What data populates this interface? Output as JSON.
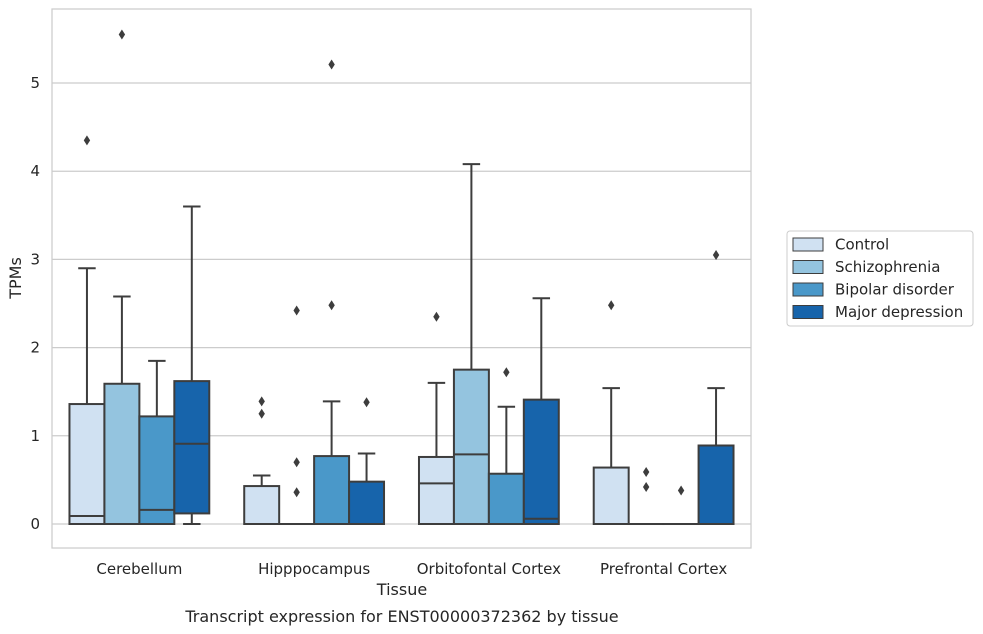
{
  "chart_data": {
    "type": "box",
    "caption": "Transcript expression for ENST00000372362 by tissue",
    "xlabel": "Tissue",
    "ylabel": "TPMs",
    "ylim": [
      -0.27,
      5.85
    ],
    "yticks": [
      0,
      1,
      2,
      3,
      4,
      5
    ],
    "grid": true,
    "legend_position": "right",
    "categories": [
      "Cerebellum",
      "Hipppocampus",
      "Orbitofontal Cortex",
      "Prefrontal Cortex"
    ],
    "series": [
      {
        "name": "Control",
        "color": "#d0e1f2",
        "boxes": [
          {
            "q1": 0,
            "median": 0.09,
            "q3": 1.36,
            "whisker_low": 0,
            "whisker_high": 2.9,
            "outliers": [
              4.35
            ]
          },
          {
            "q1": 0,
            "median": 0,
            "q3": 0.43,
            "whisker_low": 0,
            "whisker_high": 0.55,
            "outliers": [
              1.39,
              1.25
            ]
          },
          {
            "q1": 0,
            "median": 0.46,
            "q3": 0.76,
            "whisker_low": 0,
            "whisker_high": 1.6,
            "outliers": [
              2.35
            ]
          },
          {
            "q1": 0,
            "median": 0,
            "q3": 0.64,
            "whisker_low": 0,
            "whisker_high": 1.54,
            "outliers": [
              2.48
            ]
          }
        ]
      },
      {
        "name": "Schizophrenia",
        "color": "#94c4df",
        "boxes": [
          {
            "q1": 0,
            "median": 0,
            "q3": 1.59,
            "whisker_low": 0,
            "whisker_high": 2.58,
            "outliers": [
              5.55
            ]
          },
          {
            "q1": 0,
            "median": 0,
            "q3": 0,
            "whisker_low": 0,
            "whisker_high": 0,
            "outliers": [
              0.7,
              0.36,
              2.42
            ]
          },
          {
            "q1": 0,
            "median": 0.79,
            "q3": 1.75,
            "whisker_low": 0,
            "whisker_high": 4.08,
            "outliers": []
          },
          {
            "q1": 0,
            "median": 0,
            "q3": 0,
            "whisker_low": 0,
            "whisker_high": 0,
            "outliers": [
              0.59,
              0.42
            ]
          }
        ]
      },
      {
        "name": "Bipolar disorder",
        "color": "#4a98c9",
        "boxes": [
          {
            "q1": 0,
            "median": 0.16,
            "q3": 1.22,
            "whisker_low": 0,
            "whisker_high": 1.85,
            "outliers": []
          },
          {
            "q1": 0,
            "median": 0,
            "q3": 0.77,
            "whisker_low": 0,
            "whisker_high": 1.39,
            "outliers": [
              5.21,
              2.48
            ]
          },
          {
            "q1": 0,
            "median": 0,
            "q3": 0.57,
            "whisker_low": 0,
            "whisker_high": 1.33,
            "outliers": [
              1.72
            ]
          },
          {
            "q1": 0,
            "median": 0,
            "q3": 0,
            "whisker_low": 0,
            "whisker_high": 0,
            "outliers": [
              0.38
            ]
          }
        ]
      },
      {
        "name": "Major depression",
        "color": "#1764ab",
        "boxes": [
          {
            "q1": 0.12,
            "median": 0.91,
            "q3": 1.62,
            "whisker_low": 0,
            "whisker_high": 3.6,
            "outliers": []
          },
          {
            "q1": 0,
            "median": 0,
            "q3": 0.48,
            "whisker_low": 0,
            "whisker_high": 0.8,
            "outliers": [
              1.38
            ]
          },
          {
            "q1": 0,
            "median": 0.06,
            "q3": 1.41,
            "whisker_low": 0,
            "whisker_high": 2.56,
            "outliers": []
          },
          {
            "q1": 0,
            "median": 0,
            "q3": 0.89,
            "whisker_low": 0,
            "whisker_high": 1.54,
            "outliers": [
              3.05
            ]
          }
        ]
      }
    ]
  }
}
